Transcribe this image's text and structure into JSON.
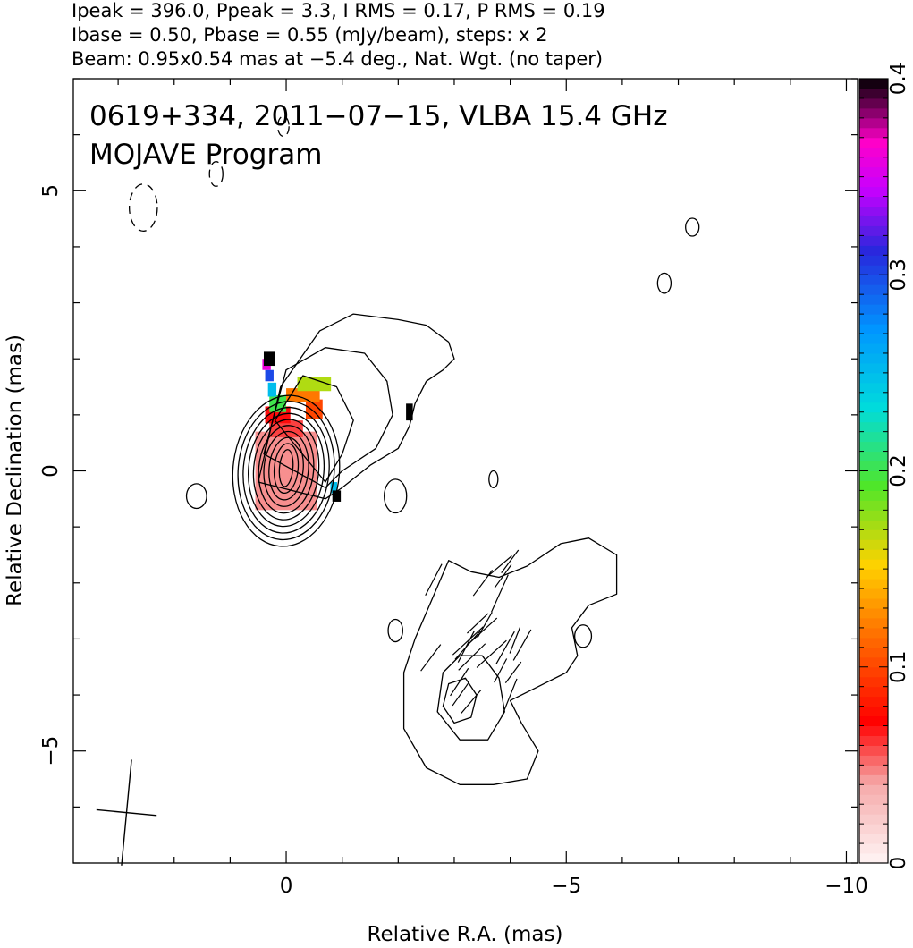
{
  "chart_data": {
    "type": "contour",
    "header_lines": [
      "Ipeak = 396.0, Ppeak = 3.3, I RMS = 0.17, P RMS = 0.19",
      "Ibase = 0.50, Pbase = 0.55 (mJy/beam), steps: x 2",
      "Beam: 0.95x0.54 mas at −5.4 deg., Nat. Wgt. (no taper)"
    ],
    "title": "0619+334, 2011−07−15, VLBA 15.4 GHz",
    "subtitle": "MOJAVE Program",
    "xlabel": "Relative R.A. (mas)",
    "ylabel": "Relative Declination (mas)",
    "xlim": [
      3.8,
      -10.2
    ],
    "ylim": [
      -7.0,
      7.0
    ],
    "x_ticks": [
      {
        "value": 0,
        "label": "0"
      },
      {
        "value": -5,
        "label": "−5"
      },
      {
        "value": -10,
        "label": "−10"
      }
    ],
    "y_ticks": [
      {
        "value": 5,
        "label": "5"
      },
      {
        "value": 0,
        "label": "0"
      },
      {
        "value": -5,
        "label": "−5"
      }
    ],
    "colorbar": {
      "label_unit": "",
      "range": [
        0,
        0.4
      ],
      "ticks": [
        {
          "value": 0,
          "label": "0"
        },
        {
          "value": 0.1,
          "label": "0.1"
        },
        {
          "value": 0.2,
          "label": "0.2"
        },
        {
          "value": 0.3,
          "label": "0.3"
        },
        {
          "value": 0.4,
          "label": "0.4"
        }
      ]
    },
    "contours": {
      "core": {
        "center": [
          0.0,
          0.0
        ],
        "levels": 10,
        "max_semi_axes": [
          0.95,
          1.35
        ],
        "min_semi_axes": [
          0.12,
          0.33
        ],
        "tilt_deg": 5
      },
      "jet_outer": [
        [
          0.5,
          -0.2
        ],
        [
          0.1,
          1.5
        ],
        [
          -0.6,
          2.5
        ],
        [
          -1.2,
          2.8
        ],
        [
          -2.0,
          2.7
        ],
        [
          -2.5,
          2.6
        ],
        [
          -2.9,
          2.3
        ],
        [
          -3.0,
          2.0
        ],
        [
          -2.8,
          1.8
        ],
        [
          -2.5,
          1.6
        ],
        [
          -2.3,
          1.2
        ],
        [
          -2.2,
          0.8
        ],
        [
          -2.0,
          0.4
        ],
        [
          -1.5,
          0.1
        ],
        [
          -1.0,
          -0.3
        ],
        [
          -0.7,
          -0.5
        ]
      ],
      "jet_mid": [
        [
          0.4,
          0.3
        ],
        [
          0.0,
          1.8
        ],
        [
          -0.7,
          2.2
        ],
        [
          -1.4,
          2.1
        ],
        [
          -1.8,
          1.6
        ],
        [
          -1.9,
          1.0
        ],
        [
          -1.6,
          0.4
        ],
        [
          -1.0,
          0.0
        ],
        [
          -0.7,
          -0.3
        ]
      ],
      "jet_inner": [
        [
          0.2,
          0.9
        ],
        [
          -0.3,
          1.7
        ],
        [
          -0.9,
          1.5
        ],
        [
          -1.2,
          0.9
        ],
        [
          -1.0,
          0.3
        ],
        [
          -0.7,
          -0.2
        ]
      ],
      "southern_component": [
        [
          -2.9,
          -1.6
        ],
        [
          -3.3,
          -1.8
        ],
        [
          -3.8,
          -1.9
        ],
        [
          -4.3,
          -1.7
        ],
        [
          -4.9,
          -1.3
        ],
        [
          -5.4,
          -1.2
        ],
        [
          -5.9,
          -1.5
        ],
        [
          -5.9,
          -2.2
        ],
        [
          -5.4,
          -2.4
        ],
        [
          -5.1,
          -2.8
        ],
        [
          -5.2,
          -3.3
        ],
        [
          -5.0,
          -3.6
        ],
        [
          -4.4,
          -3.9
        ],
        [
          -4.0,
          -4.1
        ],
        [
          -4.2,
          -4.5
        ],
        [
          -4.5,
          -5.0
        ],
        [
          -4.3,
          -5.5
        ],
        [
          -3.7,
          -5.6
        ],
        [
          -3.1,
          -5.6
        ],
        [
          -2.5,
          -5.3
        ],
        [
          -2.1,
          -4.6
        ],
        [
          -2.1,
          -3.6
        ],
        [
          -2.3,
          -3.0
        ],
        [
          -2.6,
          -2.3
        ]
      ],
      "southern_mid": [
        [
          -3.1,
          -3.3
        ],
        [
          -3.5,
          -3.3
        ],
        [
          -3.8,
          -3.7
        ],
        [
          -3.9,
          -4.3
        ],
        [
          -3.6,
          -4.8
        ],
        [
          -3.1,
          -4.8
        ],
        [
          -2.7,
          -4.3
        ],
        [
          -2.8,
          -3.6
        ]
      ],
      "southern_core": [
        [
          -2.9,
          -3.8
        ],
        [
          -3.2,
          -3.7
        ],
        [
          -3.4,
          -4.0
        ],
        [
          -3.3,
          -4.4
        ],
        [
          -3.0,
          -4.5
        ],
        [
          -2.8,
          -4.2
        ]
      ],
      "small_islands": [
        {
          "c": [
            1.6,
            -0.45
          ],
          "r": [
            0.18,
            0.22
          ]
        },
        {
          "c": [
            -1.95,
            -0.45
          ],
          "r": [
            0.2,
            0.3
          ]
        },
        {
          "c": [
            -3.7,
            -0.15
          ],
          "r": [
            0.08,
            0.15
          ]
        },
        {
          "c": [
            -6.75,
            3.35
          ],
          "r": [
            0.12,
            0.18
          ]
        },
        {
          "c": [
            -7.25,
            4.35
          ],
          "r": [
            0.12,
            0.16
          ]
        },
        {
          "c": [
            -1.95,
            -2.85
          ],
          "r": [
            0.13,
            0.2
          ]
        },
        {
          "c": [
            -5.3,
            -2.95
          ],
          "r": [
            0.15,
            0.2
          ]
        }
      ],
      "negative_islands": [
        {
          "c": [
            2.55,
            4.7
          ],
          "r": [
            0.25,
            0.42
          ]
        },
        {
          "c": [
            1.25,
            5.3
          ],
          "r": [
            0.12,
            0.22
          ]
        },
        {
          "c": [
            0.05,
            6.15
          ],
          "r": [
            0.1,
            0.18
          ]
        }
      ]
    },
    "polarization_pixels": [
      {
        "x": 0.0,
        "y": 0.0,
        "v": 0.045,
        "w": 1.1,
        "h": 1.4
      },
      {
        "x": 0.0,
        "y": 0.75,
        "v": 0.06,
        "w": 0.6,
        "h": 0.3
      },
      {
        "x": 0.15,
        "y": 1.0,
        "v": 0.07,
        "w": 0.45,
        "h": 0.3
      },
      {
        "x": -0.5,
        "y": 1.1,
        "v": 0.1,
        "w": 0.3,
        "h": 0.35
      },
      {
        "x": -0.3,
        "y": 1.35,
        "v": 0.12,
        "w": 0.6,
        "h": 0.25
      },
      {
        "x": -0.5,
        "y": 1.55,
        "v": 0.17,
        "w": 0.6,
        "h": 0.25
      },
      {
        "x": 0.15,
        "y": 1.2,
        "v": 0.2,
        "w": 0.3,
        "h": 0.3
      },
      {
        "x": 0.25,
        "y": 1.45,
        "v": 0.25,
        "w": 0.15,
        "h": 0.25
      },
      {
        "x": 0.3,
        "y": 1.7,
        "v": 0.3,
        "w": 0.15,
        "h": 0.2
      },
      {
        "x": 0.35,
        "y": 1.9,
        "v": 0.36,
        "w": 0.15,
        "h": 0.2
      },
      {
        "x": 0.3,
        "y": 2.0,
        "v": 0.4,
        "w": 0.2,
        "h": 0.25
      },
      {
        "x": -0.85,
        "y": -0.3,
        "v": 0.25,
        "w": 0.12,
        "h": 0.2
      },
      {
        "x": -0.9,
        "y": -0.45,
        "v": 0.4,
        "w": 0.15,
        "h": 0.2
      },
      {
        "x": -2.2,
        "y": 1.05,
        "v": 0.4,
        "w": 0.12,
        "h": 0.3
      }
    ],
    "evpa_ticks_region": {
      "center": [
        -3.4,
        -3.4
      ],
      "count": 24
    },
    "beam": {
      "major": 0.95,
      "minor": 0.54,
      "pa_deg": -5.4,
      "position": [
        2.85,
        -6.1
      ]
    }
  }
}
